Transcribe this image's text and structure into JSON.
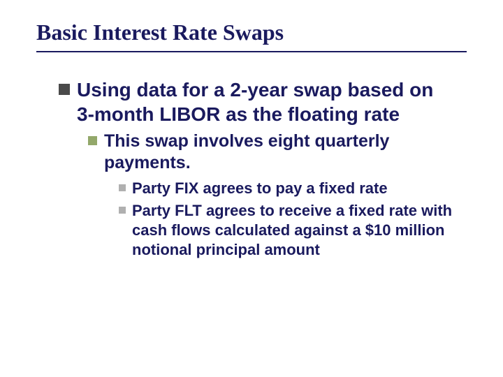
{
  "colors": {
    "text": "#1a1a5e",
    "bullet_lvl1": "#4a4a4a",
    "bullet_lvl2": "#93a86a",
    "bullet_lvl3": "#b0b0b0",
    "underline": "#1a1a5e",
    "background": "#ffffff"
  },
  "typography": {
    "title_family": "Times New Roman, serif",
    "title_size_pt": 32,
    "body_family": "Arial, sans-serif",
    "lvl1_size_pt": 28,
    "lvl2_size_pt": 25,
    "lvl3_size_pt": 22,
    "weight": "bold"
  },
  "slide": {
    "title": "Basic Interest Rate Swaps",
    "lvl1": "Using data for a 2-year swap based on 3-month LIBOR as the floating rate",
    "lvl2": "This swap involves eight quarterly payments.",
    "lvl3a": "Party FIX agrees to pay a fixed rate",
    "lvl3b": "Party FLT agrees to receive a fixed rate with cash flows calculated against a $10 million notional principal amount"
  }
}
